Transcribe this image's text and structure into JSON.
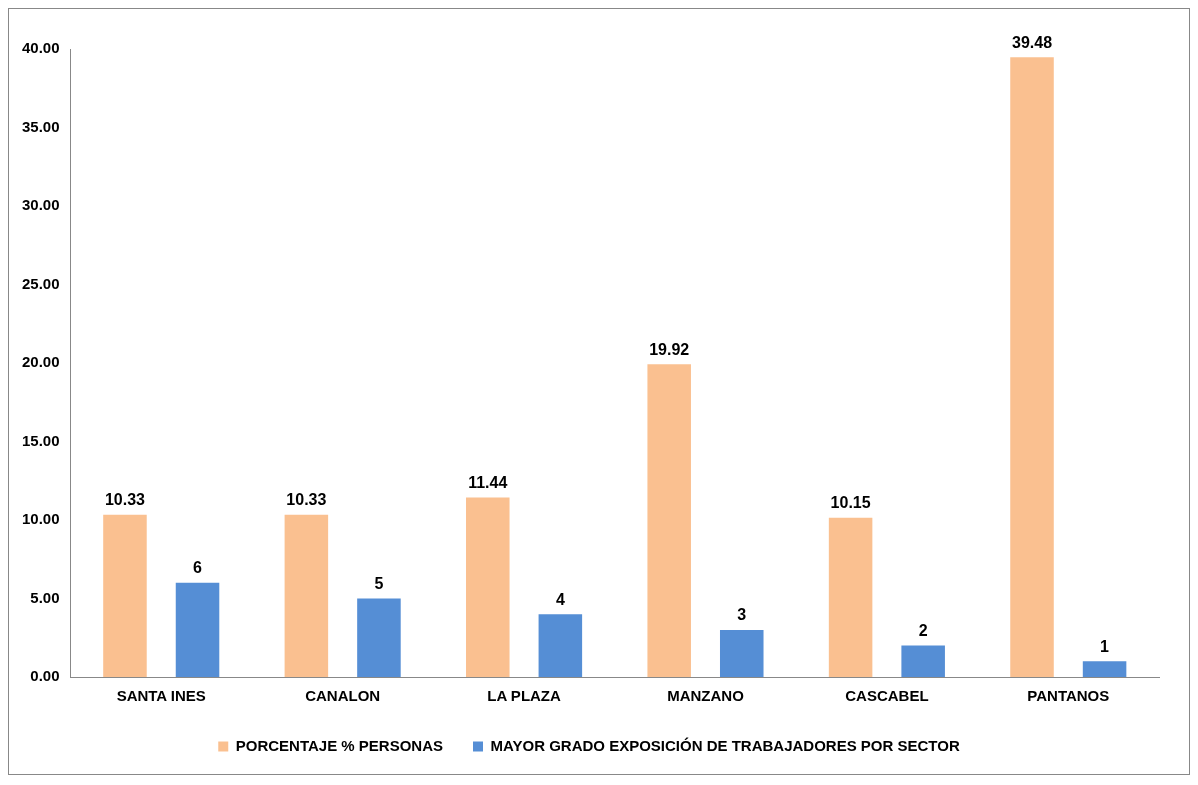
{
  "chart_data": {
    "type": "bar",
    "categories": [
      "SANTA INES",
      "CANALON",
      "LA PLAZA",
      "MANZANO",
      "CASCABEL",
      "PANTANOS"
    ],
    "series": [
      {
        "name": "PORCENTAJE % PERSONAS",
        "color": "#fac090",
        "values": [
          10.33,
          10.33,
          11.44,
          19.92,
          10.15,
          39.48
        ]
      },
      {
        "name": "MAYOR GRADO EXPOSICIÓN DE TRABAJADORES POR SECTOR",
        "color": "#558ed5",
        "values": [
          6,
          5,
          4,
          3,
          2,
          1
        ]
      }
    ],
    "ylim": [
      0,
      40
    ],
    "yticks": [
      {
        "value": 0,
        "label": "0.00"
      },
      {
        "value": 5,
        "label": "5.00"
      },
      {
        "value": 10,
        "label": "10.00"
      },
      {
        "value": 15,
        "label": "15.00"
      },
      {
        "value": 20,
        "label": "20.00"
      },
      {
        "value": 25,
        "label": "25.00"
      },
      {
        "value": 30,
        "label": "30.00"
      },
      {
        "value": 35,
        "label": "35.00"
      },
      {
        "value": 40,
        "label": "40.00"
      }
    ],
    "grid": false,
    "legend": "bottom",
    "data_labels": true
  }
}
